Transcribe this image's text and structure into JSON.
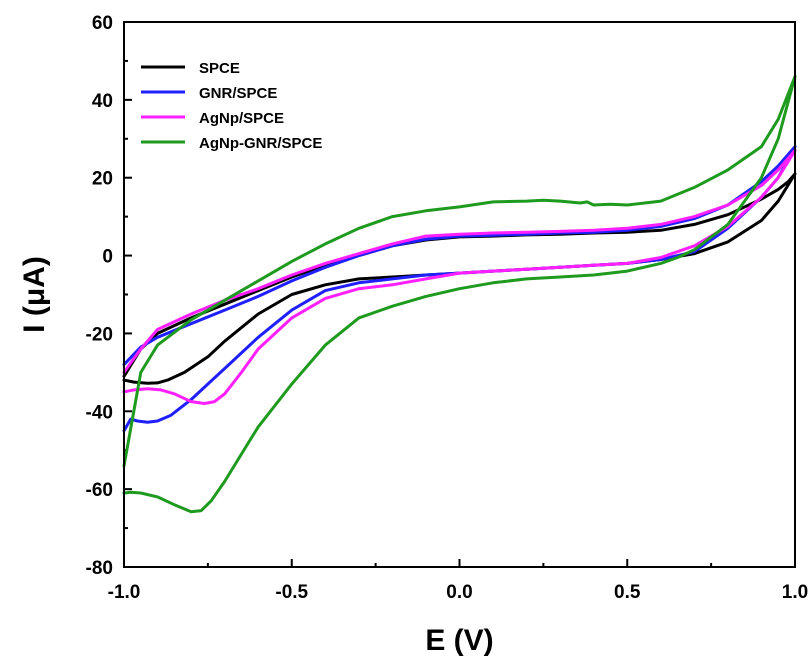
{
  "chart_data": {
    "type": "line",
    "title": "",
    "xlabel": "E (V)",
    "ylabel": "I (μA)",
    "xlim": [
      -1.0,
      1.0
    ],
    "ylim": [
      -80,
      60
    ],
    "x_ticks": [
      -1.0,
      -0.5,
      0.0,
      0.5,
      1.0
    ],
    "x_tick_labels": [
      "-1.0",
      "-0.5",
      "0.0",
      "0.5",
      "1.0"
    ],
    "y_ticks": [
      -80,
      -60,
      -40,
      -20,
      0,
      20,
      40,
      60
    ],
    "y_tick_labels": [
      "-80",
      "-60",
      "-40",
      "-20",
      "0",
      "20",
      "40",
      "60"
    ],
    "grid": false,
    "legend_position": "top-left",
    "series": [
      {
        "name": "SPCE",
        "color": "#000000",
        "x": [
          -1.0,
          -0.97,
          -0.93,
          -0.9,
          -0.87,
          -0.82,
          -0.75,
          -0.7,
          -0.6,
          -0.5,
          -0.4,
          -0.3,
          -0.2,
          -0.1,
          0.0,
          0.1,
          0.2,
          0.3,
          0.4,
          0.5,
          0.6,
          0.7,
          0.8,
          0.9,
          0.95,
          1.0,
          0.98,
          0.95,
          0.9,
          0.8,
          0.7,
          0.6,
          0.5,
          0.4,
          0.3,
          0.2,
          0.1,
          0.0,
          -0.1,
          -0.2,
          -0.3,
          -0.4,
          -0.5,
          -0.6,
          -0.7,
          -0.8,
          -0.9,
          -0.95,
          -1.0
        ],
        "y": [
          -32,
          -32.5,
          -32.8,
          -32.7,
          -32,
          -30,
          -26,
          -22,
          -15,
          -10,
          -7.5,
          -6,
          -5.5,
          -5,
          -4.5,
          -4,
          -3.5,
          -3,
          -2.5,
          -2,
          -1,
          0.5,
          3.5,
          9,
          14,
          21,
          19,
          17,
          14.5,
          10.5,
          8,
          6.5,
          6,
          5.8,
          5.5,
          5.3,
          5,
          4.8,
          4,
          2.5,
          0,
          -2.5,
          -5.5,
          -9,
          -12.5,
          -16,
          -20,
          -24,
          -31
        ]
      },
      {
        "name": "GNR/SPCE",
        "color": "#1f1fff",
        "x": [
          -1.0,
          -0.98,
          -0.96,
          -0.93,
          -0.9,
          -0.86,
          -0.8,
          -0.75,
          -0.7,
          -0.6,
          -0.5,
          -0.4,
          -0.3,
          -0.2,
          -0.1,
          0.0,
          0.1,
          0.2,
          0.3,
          0.4,
          0.5,
          0.6,
          0.7,
          0.8,
          0.9,
          0.95,
          1.0,
          0.95,
          0.9,
          0.8,
          0.7,
          0.6,
          0.5,
          0.4,
          0.3,
          0.2,
          0.1,
          0.0,
          -0.1,
          -0.2,
          -0.3,
          -0.4,
          -0.5,
          -0.6,
          -0.7,
          -0.8,
          -0.9,
          -0.95,
          -1.0
        ],
        "y": [
          -45,
          -42,
          -42.5,
          -42.8,
          -42.5,
          -41,
          -37,
          -33,
          -29,
          -21,
          -14,
          -9,
          -7,
          -6,
          -5,
          -4.5,
          -4,
          -3.5,
          -3,
          -2.5,
          -2,
          -1,
          1,
          7,
          15,
          20,
          28,
          23,
          19,
          13,
          9.5,
          7.5,
          6.5,
          6,
          5.8,
          5.5,
          5.2,
          5,
          4.2,
          2.5,
          0,
          -3,
          -6.5,
          -10.5,
          -14,
          -17.5,
          -21,
          -23.5,
          -28
        ]
      },
      {
        "name": "AgNp/SPCE",
        "color": "#ff1fff",
        "x": [
          -1.0,
          -0.97,
          -0.93,
          -0.89,
          -0.85,
          -0.8,
          -0.76,
          -0.73,
          -0.7,
          -0.65,
          -0.6,
          -0.5,
          -0.4,
          -0.3,
          -0.2,
          -0.1,
          0.0,
          0.1,
          0.2,
          0.3,
          0.4,
          0.5,
          0.6,
          0.7,
          0.8,
          0.9,
          0.95,
          1.0,
          0.95,
          0.9,
          0.8,
          0.7,
          0.6,
          0.5,
          0.4,
          0.3,
          0.2,
          0.1,
          0.0,
          -0.1,
          -0.2,
          -0.3,
          -0.4,
          -0.5,
          -0.6,
          -0.7,
          -0.8,
          -0.9,
          -0.95,
          -1.0
        ],
        "y": [
          -35,
          -34.5,
          -34.2,
          -34.5,
          -35.5,
          -37.5,
          -38,
          -37.5,
          -35.5,
          -30,
          -24,
          -16,
          -11,
          -8.5,
          -7.5,
          -6,
          -4.5,
          -4,
          -3.5,
          -3,
          -2.5,
          -2,
          -0.5,
          2.5,
          7.5,
          15,
          20,
          27,
          22,
          18,
          13,
          10,
          8,
          7,
          6.5,
          6.2,
          6,
          5.8,
          5.5,
          5,
          3,
          0.5,
          -2,
          -5,
          -8.5,
          -11.5,
          -15,
          -19,
          -24,
          -30
        ]
      },
      {
        "name": "AgNp-GNR/SPCE",
        "color": "#1e9a1e",
        "x": [
          -1.0,
          -0.98,
          -0.95,
          -0.9,
          -0.85,
          -0.8,
          -0.77,
          -0.74,
          -0.7,
          -0.65,
          -0.6,
          -0.5,
          -0.4,
          -0.3,
          -0.2,
          -0.1,
          0.0,
          0.1,
          0.2,
          0.3,
          0.4,
          0.5,
          0.6,
          0.65,
          0.7,
          0.8,
          0.9,
          0.95,
          1.0,
          0.95,
          0.9,
          0.8,
          0.7,
          0.6,
          0.5,
          0.45,
          0.4,
          0.38,
          0.36,
          0.3,
          0.25,
          0.2,
          0.1,
          0.0,
          -0.1,
          -0.2,
          -0.3,
          -0.4,
          -0.5,
          -0.6,
          -0.7,
          -0.8,
          -0.9,
          -0.95,
          -1.0
        ],
        "y": [
          -61,
          -60.8,
          -61,
          -62,
          -64,
          -65.8,
          -65.5,
          -63,
          -58,
          -51,
          -44,
          -33,
          -23,
          -16,
          -13,
          -10.5,
          -8.5,
          -7,
          -6,
          -5.5,
          -5,
          -4,
          -2,
          -0.5,
          1.5,
          8,
          20,
          30,
          46,
          35,
          28,
          22,
          17.5,
          14,
          13,
          13.2,
          13,
          13.8,
          13.5,
          14,
          14.2,
          14,
          13.8,
          12.5,
          11.5,
          10,
          7,
          3,
          -1.5,
          -6.5,
          -11.5,
          -16.5,
          -23,
          -30,
          -54
        ]
      }
    ]
  }
}
